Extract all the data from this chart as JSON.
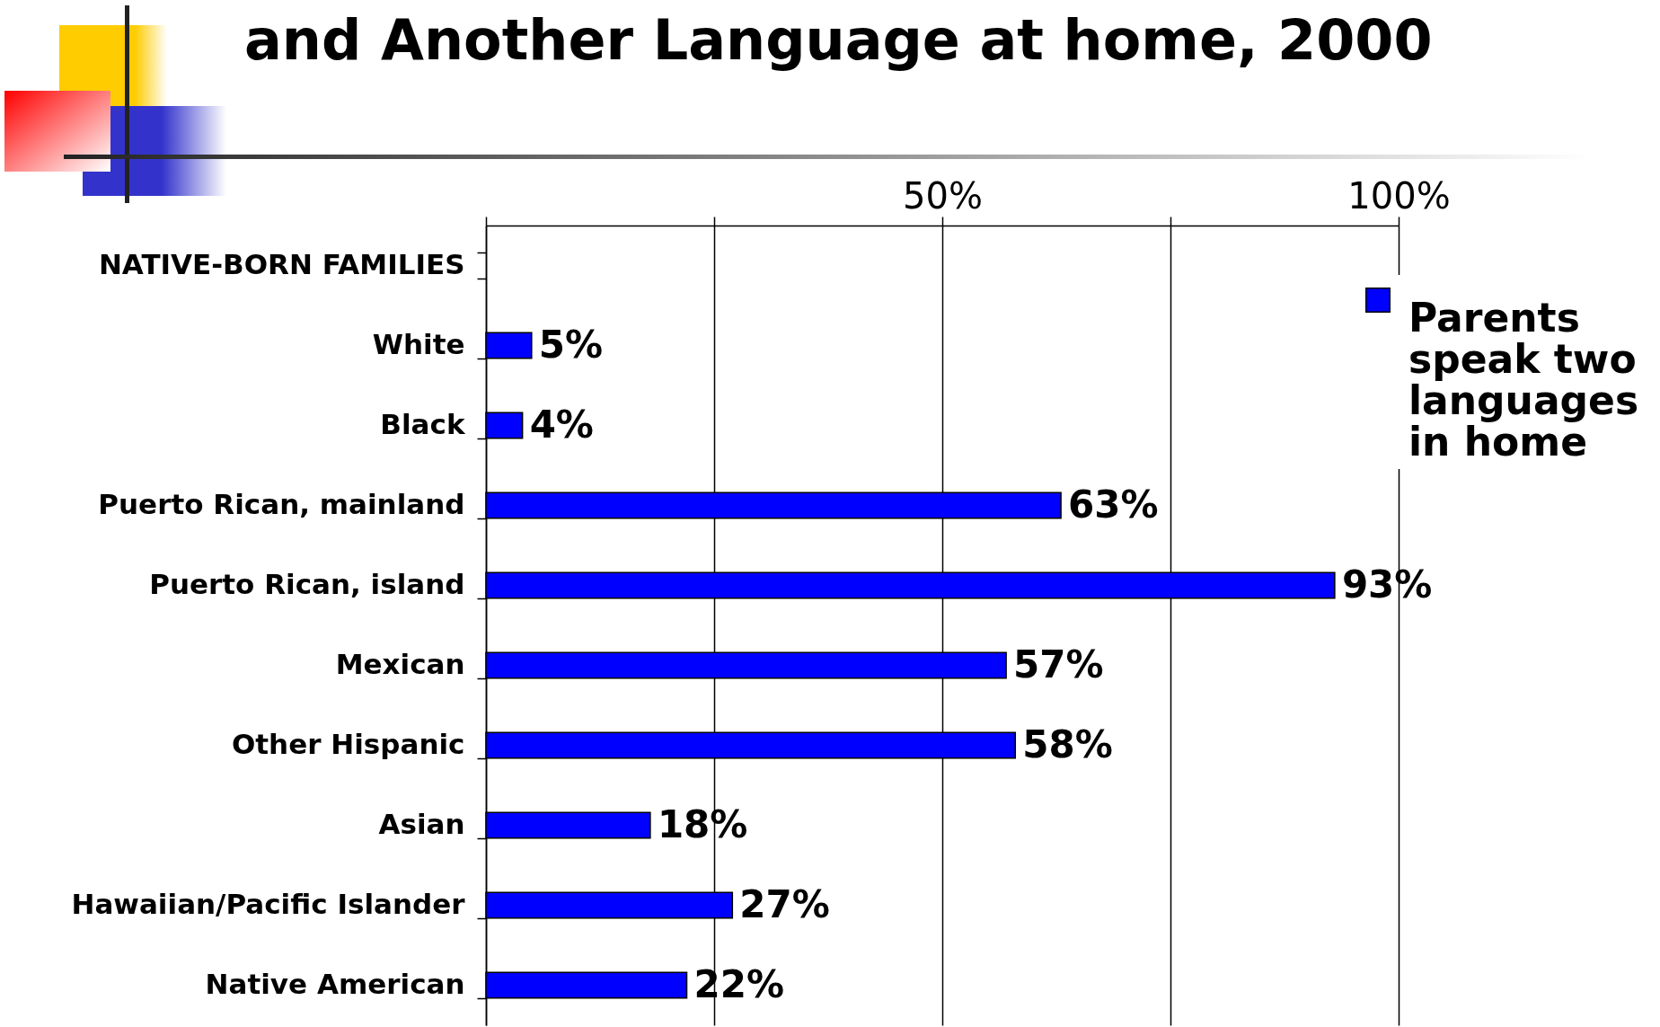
{
  "chart_data": {
    "type": "bar",
    "orientation": "horizontal",
    "title": "and Another Language at home, 2000",
    "categories": [
      "NATIVE-BORN FAMILIES",
      "White",
      "Black",
      "Puerto Rican, mainland",
      "Puerto Rican, island",
      "Mexican",
      "Other Hispanic",
      "Asian",
      "Hawaiian/Pacific Islander",
      "Native American"
    ],
    "series": [
      {
        "name": "Parents speak two languages in home",
        "color": "#0000ff",
        "values": [
          null,
          5,
          4,
          63,
          93,
          57,
          58,
          18,
          27,
          22
        ]
      }
    ],
    "value_labels": [
      null,
      "5%",
      "4%",
      "63%",
      "93%",
      "57%",
      "58%",
      "18%",
      "27%",
      "22%"
    ],
    "xlim": [
      0,
      100
    ],
    "xticks": [
      {
        "value": 0,
        "label": null
      },
      {
        "value": 25,
        "label": null
      },
      {
        "value": 50,
        "label": "50%"
      },
      {
        "value": 75,
        "label": null
      },
      {
        "value": 100,
        "label": "100%"
      }
    ],
    "grid": "x",
    "legend": "top right"
  }
}
